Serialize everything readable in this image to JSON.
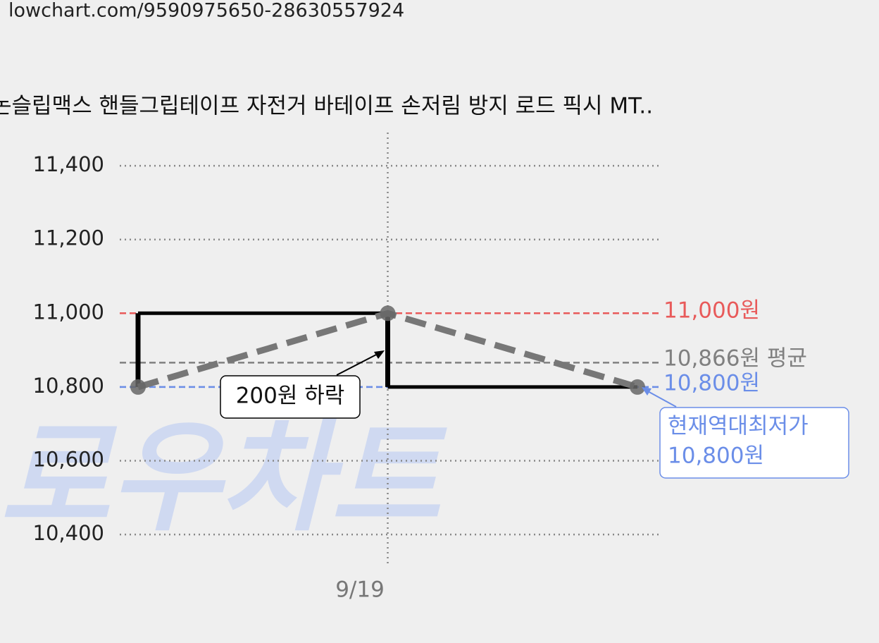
{
  "url": "lowchart.com/9590975650-28630557924",
  "chart_data": {
    "type": "line",
    "title": "논슬립맥스 핸들그립테이프 자전거 바테이프 손저림 방지 로드 픽시 MT..",
    "watermark": "로우차트",
    "categories": [
      null,
      "9/19",
      null
    ],
    "values": [
      10800,
      11000,
      10800
    ],
    "color": "#777777",
    "step_color": "#000000",
    "ylim": [
      10320,
      11490
    ],
    "yticks": [
      {
        "value": 10400,
        "label": "10,400"
      },
      {
        "value": 10600,
        "label": "10,600"
      },
      {
        "value": 10800,
        "label": "10,800"
      },
      {
        "value": 11000,
        "label": "11,000"
      },
      {
        "value": 11200,
        "label": "11,200"
      },
      {
        "value": 11400,
        "label": "11,400"
      }
    ],
    "grid": true,
    "reference_lines": [
      {
        "value": 11000,
        "label": "11,000원",
        "color": "#e85a5a"
      },
      {
        "value": 10866,
        "label": "10,866원 평균",
        "color": "#808080"
      },
      {
        "value": 10800,
        "label": "10,800원",
        "color": "#6b8ee8"
      }
    ],
    "annotations": [
      {
        "text": "200원 하락"
      },
      {
        "lines": [
          "현재역대최저가",
          "10,800원"
        ],
        "color": "#6b8ee8"
      }
    ]
  }
}
